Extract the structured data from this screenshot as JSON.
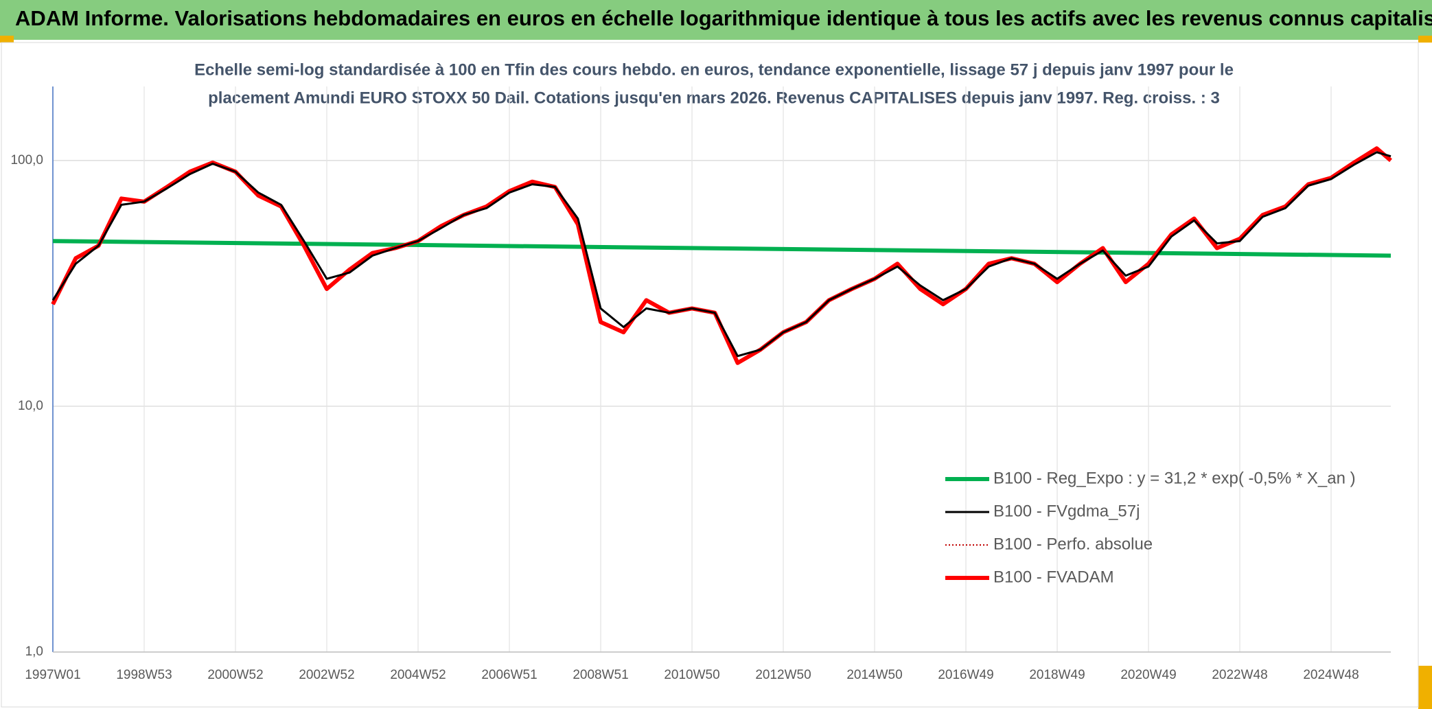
{
  "chart_data": {
    "type": "line",
    "title": "ADAM Informe. Valorisations hebdomadaires en euros en échelle logarithmique identique à tous les actifs avec les revenus connus capitalisés",
    "subtitle": [
      "Echelle semi-log standardisée à 100 en Tfin des cours hebdo. en euros, tendance exponentielle, lissage 57 j depuis janv 1997 pour le",
      "placement Amundi EURO STOXX 50 Dail. Cotations jusqu'en mars 2026. Revenus CAPITALISES depuis janv 1997. Reg. croiss. : 3"
    ],
    "log_scale": true,
    "grid": true,
    "legend": "lower-right",
    "xlim": [
      0,
      1524
    ],
    "xticks": [
      {
        "value": 0,
        "label": "1997W01"
      },
      {
        "value": 104,
        "label": "1998W53"
      },
      {
        "value": 208,
        "label": "2000W52"
      },
      {
        "value": 312,
        "label": "2002W52"
      },
      {
        "value": 416,
        "label": "2004W52"
      },
      {
        "value": 520,
        "label": "2006W51"
      },
      {
        "value": 624,
        "label": "2008W51"
      },
      {
        "value": 728,
        "label": "2010W50"
      },
      {
        "value": 832,
        "label": "2012W50"
      },
      {
        "value": 936,
        "label": "2014W50"
      },
      {
        "value": 1040,
        "label": "2016W49"
      },
      {
        "value": 1144,
        "label": "2018W49"
      },
      {
        "value": 1248,
        "label": "2020W49"
      },
      {
        "value": 1352,
        "label": "2022W48"
      },
      {
        "value": 1456,
        "label": "2024W48"
      }
    ],
    "ylim": [
      1,
      200
    ],
    "yticks": [
      {
        "value": 1,
        "label": "1,0"
      },
      {
        "value": 10,
        "label": "10,0"
      },
      {
        "value": 100,
        "label": "100,0"
      }
    ],
    "x": [
      0,
      26,
      52,
      78,
      104,
      130,
      156,
      182,
      208,
      234,
      260,
      286,
      312,
      338,
      364,
      390,
      416,
      442,
      468,
      494,
      520,
      546,
      572,
      598,
      624,
      650,
      676,
      702,
      728,
      754,
      780,
      806,
      832,
      858,
      884,
      910,
      936,
      962,
      988,
      1014,
      1040,
      1066,
      1092,
      1118,
      1144,
      1170,
      1196,
      1222,
      1248,
      1274,
      1300,
      1326,
      1352,
      1378,
      1404,
      1430,
      1456,
      1482,
      1508,
      1524
    ],
    "series": [
      {
        "name": "B100 - Reg_Expo : y = 31,2 * exp( -0,5% *  X_an )",
        "color": "#00b050",
        "style": "thick",
        "x": [
          0,
          1524
        ],
        "values": [
          47,
          41
        ]
      },
      {
        "name": "B100 - FVgdma_57j",
        "color": "#000000",
        "style": "thin",
        "values": [
          27,
          38,
          45,
          66,
          68,
          77,
          88,
          97,
          90,
          74,
          66,
          47,
          33,
          35,
          41,
          44,
          47,
          53,
          60,
          64,
          74,
          80,
          78,
          58,
          25,
          21,
          25,
          24,
          25,
          24,
          16,
          17,
          20,
          22,
          27,
          30,
          33,
          37,
          31,
          27,
          30,
          37,
          40,
          38,
          33,
          38,
          43,
          34,
          37,
          49,
          57,
          46,
          47,
          59,
          64,
          79,
          84,
          96,
          108,
          104
        ]
      },
      {
        "name": "B100 - Perfo. absolue",
        "color": "#c00000",
        "style": "dotted",
        "values": [
          26,
          40,
          45,
          70,
          68,
          78,
          90,
          98,
          90,
          72,
          65,
          45,
          30,
          36,
          42,
          44,
          47,
          54,
          60,
          65,
          75,
          82,
          78,
          55,
          22,
          20,
          27,
          24,
          25,
          24,
          15,
          17,
          20,
          22,
          27,
          30,
          33,
          38,
          30,
          26,
          30,
          38,
          40,
          38,
          32,
          38,
          44,
          32,
          38,
          50,
          58,
          44,
          48,
          60,
          65,
          80,
          85,
          98,
          112,
          100
        ]
      },
      {
        "name": "B100 - FVADAM",
        "color": "#ff0000",
        "style": "thick",
        "values": [
          26,
          40,
          45,
          70,
          68,
          78,
          90,
          98,
          90,
          72,
          65,
          45,
          30,
          36,
          42,
          44,
          47,
          54,
          60,
          65,
          75,
          82,
          78,
          55,
          22,
          20,
          27,
          24,
          25,
          24,
          15,
          17,
          20,
          22,
          27,
          30,
          33,
          38,
          30,
          26,
          30,
          38,
          40,
          38,
          32,
          38,
          44,
          32,
          38,
          50,
          58,
          44,
          48,
          60,
          65,
          80,
          85,
          98,
          112,
          100
        ]
      }
    ]
  }
}
